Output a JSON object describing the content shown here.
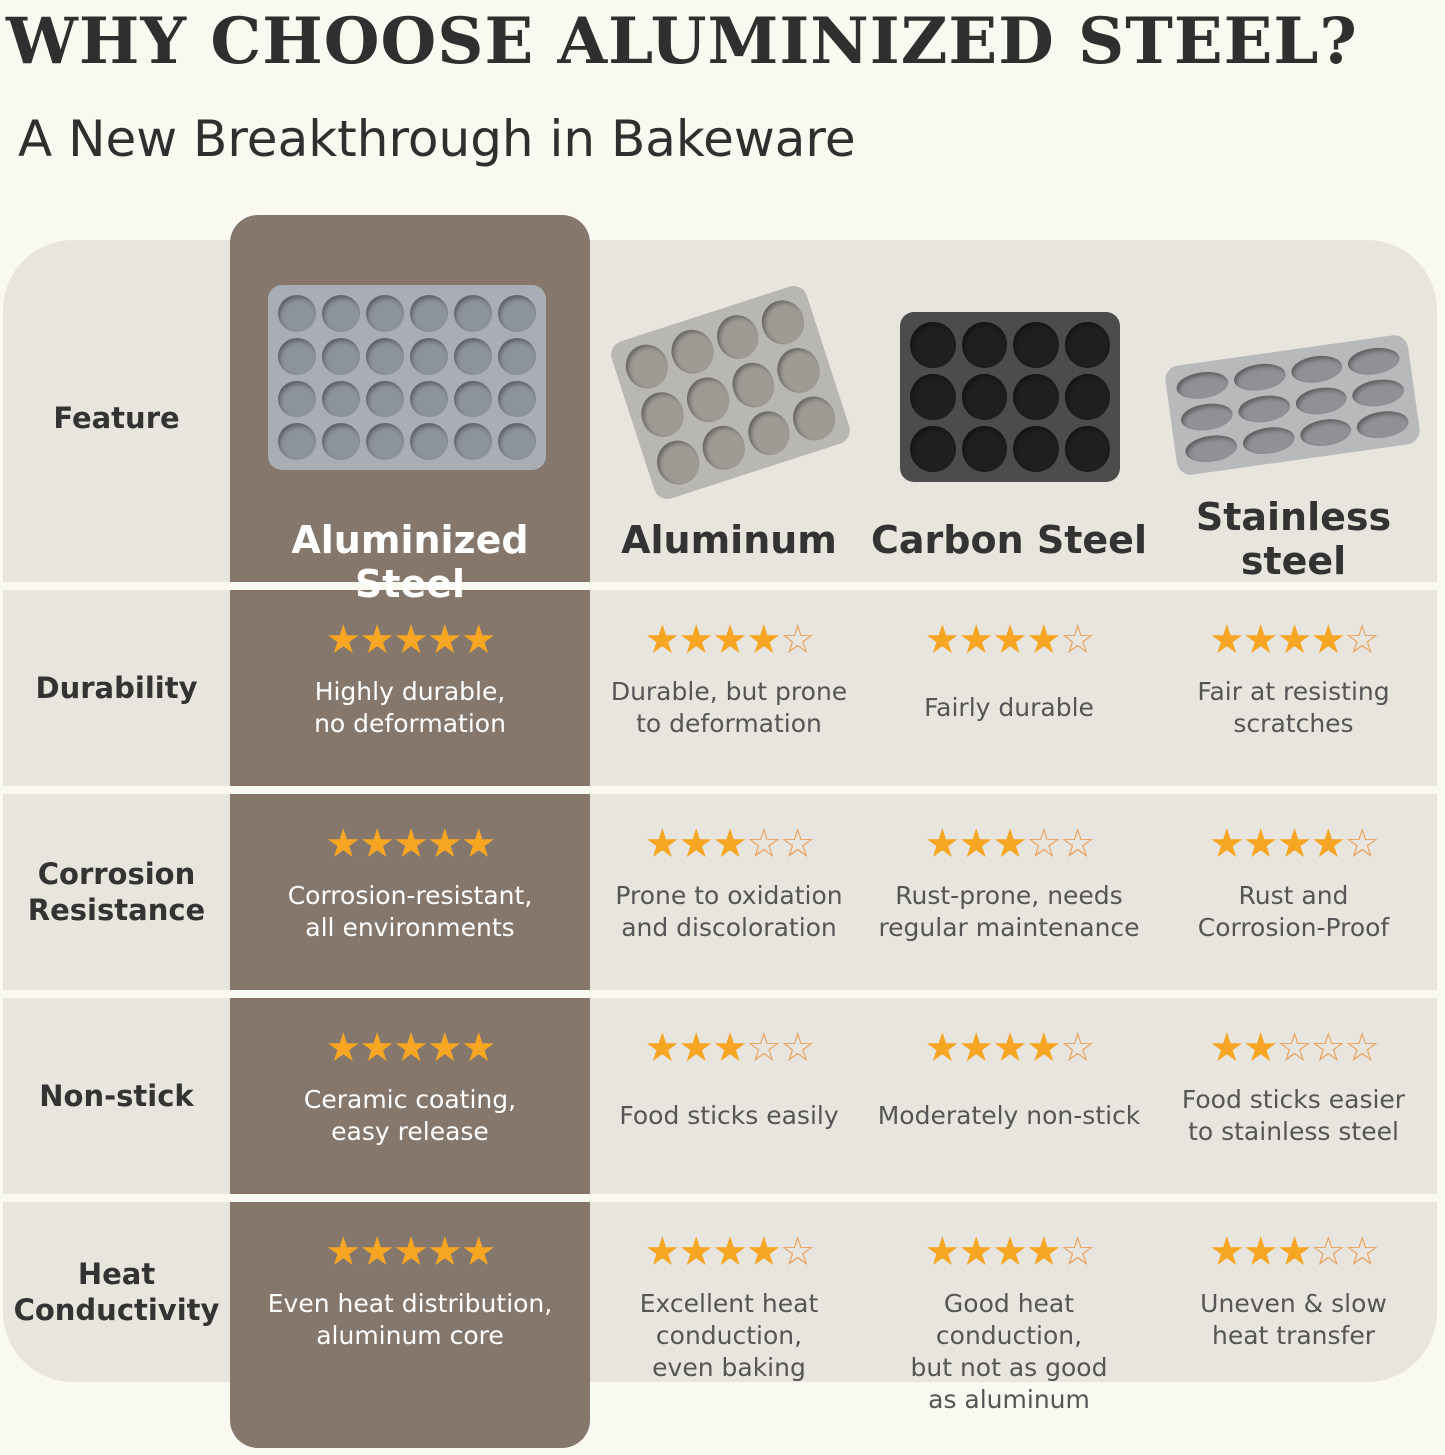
{
  "header": {
    "title": "WHY CHOOSE ALUMINIZED STEEL?",
    "subtitle": "A New Breakthrough in Bakeware"
  },
  "colors": {
    "highlight": "#85776c",
    "table_bg": "#e7e5de",
    "star": "#f6a623",
    "page_bg": "#f9f8f1"
  },
  "feature_header": "Feature",
  "materials": [
    {
      "name": "Aluminized Steel",
      "image": "muffin-pan-24-cup-grey-icon"
    },
    {
      "name": "Aluminum",
      "image": "muffin-pan-12-cup-aluminum-icon"
    },
    {
      "name": "Carbon Steel",
      "image": "muffin-pan-12-cup-dark-icon"
    },
    {
      "name": "Stainless\nsteel",
      "image": "muffin-pan-12-cup-stainless-icon"
    }
  ],
  "rows": [
    {
      "feature": "Durability",
      "ratings": [
        5,
        4,
        4,
        4
      ],
      "descriptions": [
        "Highly durable,\nno deformation",
        "Durable, but prone\nto deformation",
        "Fairly durable",
        "Fair at resisting\nscratches"
      ]
    },
    {
      "feature": "Corrosion\nResistance",
      "ratings": [
        5,
        3,
        3,
        4
      ],
      "descriptions": [
        "Corrosion-resistant,\nall environments",
        "Prone to oxidation\nand discoloration",
        "Rust-prone, needs\nregular maintenance",
        "Rust and\nCorrosion-Proof"
      ]
    },
    {
      "feature": "Non-stick",
      "ratings": [
        5,
        3,
        4,
        2
      ],
      "descriptions": [
        "Ceramic coating,\neasy release",
        "Food sticks easily",
        "Moderately non-stick",
        "Food sticks easier\nto stainless steel"
      ]
    },
    {
      "feature": "Heat\nConductivity",
      "ratings": [
        5,
        4,
        4,
        3
      ],
      "descriptions": [
        "Even heat distribution,\naluminum core",
        "Excellent heat\nconduction,\neven baking",
        "Good heat conduction,\nbut not as good\nas aluminum",
        "Uneven & slow\nheat transfer"
      ]
    }
  ],
  "max_rating": 5
}
